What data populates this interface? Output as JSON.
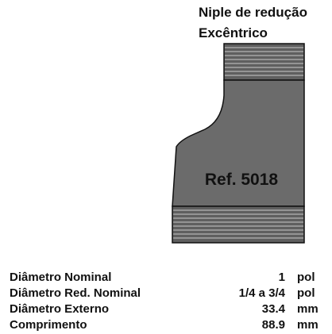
{
  "product": {
    "title_line1": "Niple de redução",
    "title_line2": "Excêntrico",
    "ref": "Ref. 5018"
  },
  "specs": [
    {
      "label": "Diâmetro Nominal",
      "value": "1",
      "unit": "pol"
    },
    {
      "label": "Diâmetro Red. Nominal",
      "value": "1/4 a 3/4",
      "unit": "pol"
    },
    {
      "label": "Diâmetro Externo",
      "value": "33.4",
      "unit": "mm"
    },
    {
      "label": "Comprimento",
      "value": "88.9",
      "unit": "mm"
    }
  ],
  "colors": {
    "body_fill": "#6b6b6b",
    "thread_fill": "#5f5f5f",
    "outline": "#111111",
    "thread_line": "#c8c8c8"
  }
}
